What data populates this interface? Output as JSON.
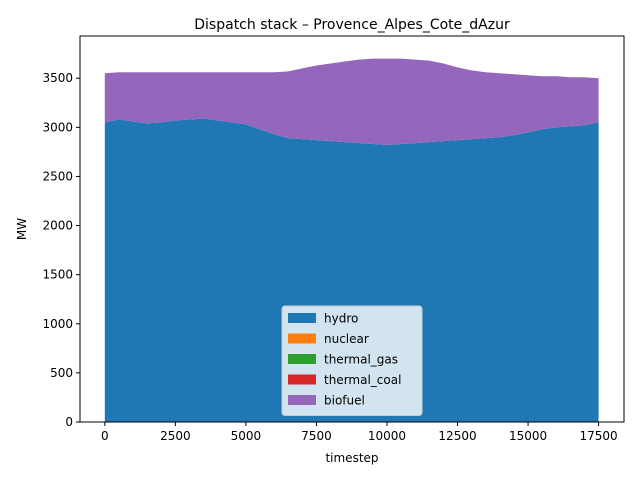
{
  "chart_data": {
    "type": "area",
    "stacked": true,
    "title": "Dispatch stack – Provence_Alpes_Cote_dAzur",
    "xlabel": "timestep",
    "ylabel": "MW",
    "xlim": [
      -880,
      18400
    ],
    "ylim": [
      0,
      3930
    ],
    "xticks": [
      0,
      2500,
      5000,
      7500,
      10000,
      12500,
      15000,
      17500
    ],
    "xtick_labels": [
      "0",
      "2500",
      "5000",
      "7500",
      "10000",
      "12500",
      "15000",
      "17500"
    ],
    "yticks": [
      0,
      500,
      1000,
      1500,
      2000,
      2500,
      3000,
      3500
    ],
    "ytick_labels": [
      "0",
      "500",
      "1000",
      "1500",
      "2000",
      "2500",
      "3000",
      "3500"
    ],
    "grid": false,
    "legend_position": "lower-center",
    "x": [
      0,
      500,
      1000,
      1500,
      2000,
      2500,
      3000,
      3500,
      4000,
      4500,
      5000,
      5500,
      6000,
      6500,
      7000,
      7500,
      8000,
      8500,
      9000,
      9500,
      10000,
      10500,
      11000,
      11500,
      12000,
      12500,
      13000,
      13500,
      14000,
      14500,
      15000,
      15500,
      16000,
      16500,
      17000,
      17500
    ],
    "series": [
      {
        "name": "hydro",
        "color": "#1f77b4",
        "values": [
          3050,
          3080,
          3060,
          3040,
          3050,
          3070,
          3080,
          3090,
          3070,
          3050,
          3030,
          2980,
          2930,
          2890,
          2880,
          2870,
          2860,
          2850,
          2840,
          2830,
          2820,
          2830,
          2840,
          2850,
          2860,
          2870,
          2880,
          2890,
          2900,
          2920,
          2950,
          2980,
          3000,
          3010,
          3020,
          3050
        ]
      },
      {
        "name": "nuclear",
        "color": "#ff7f0e",
        "values": [
          0,
          0,
          0,
          0,
          0,
          0,
          0,
          0,
          0,
          0,
          0,
          0,
          0,
          0,
          0,
          0,
          0,
          0,
          0,
          0,
          0,
          0,
          0,
          0,
          0,
          0,
          0,
          0,
          0,
          0,
          0,
          0,
          0,
          0,
          0,
          0
        ]
      },
      {
        "name": "thermal_gas",
        "color": "#2ca02c",
        "values": [
          0,
          0,
          0,
          0,
          0,
          0,
          0,
          0,
          0,
          0,
          0,
          0,
          0,
          0,
          0,
          0,
          0,
          0,
          0,
          0,
          0,
          0,
          0,
          0,
          0,
          0,
          0,
          0,
          0,
          0,
          0,
          0,
          0,
          0,
          0,
          0
        ]
      },
      {
        "name": "thermal_coal",
        "color": "#d62728",
        "values": [
          0,
          0,
          0,
          0,
          0,
          0,
          0,
          0,
          0,
          0,
          0,
          0,
          0,
          0,
          0,
          0,
          0,
          0,
          0,
          0,
          0,
          0,
          0,
          0,
          0,
          0,
          0,
          0,
          0,
          0,
          0,
          0,
          0,
          0,
          0,
          0
        ]
      },
      {
        "name": "biofuel",
        "color": "#9467bd",
        "values": [
          500,
          480,
          500,
          520,
          510,
          490,
          480,
          470,
          490,
          510,
          530,
          580,
          630,
          680,
          720,
          760,
          790,
          820,
          850,
          870,
          880,
          870,
          850,
          830,
          790,
          740,
          700,
          670,
          650,
          620,
          580,
          540,
          520,
          500,
          490,
          450
        ]
      }
    ]
  }
}
